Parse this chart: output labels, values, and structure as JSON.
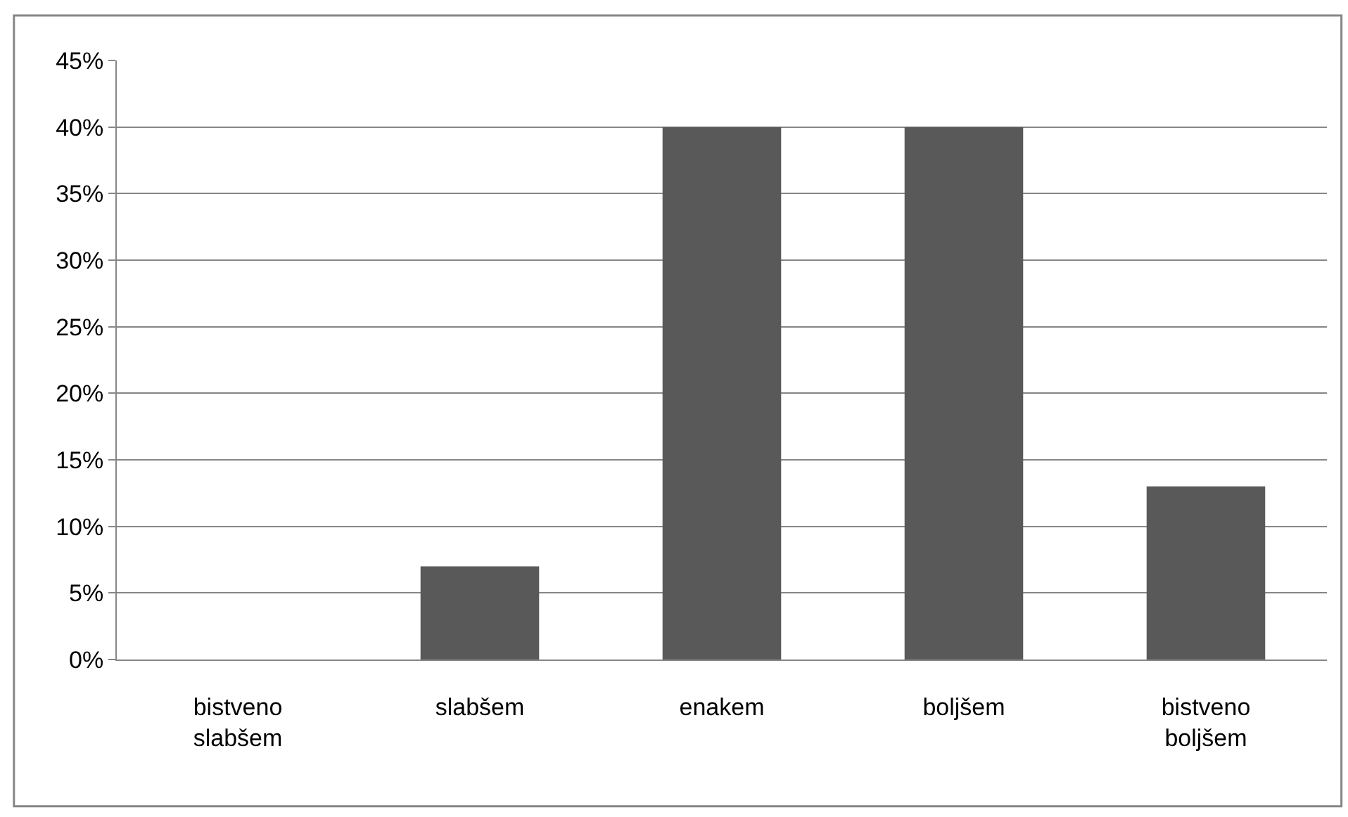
{
  "chart_data": {
    "type": "bar",
    "categories": [
      "bistveno slabšem",
      "slabšem",
      "enakem",
      "boljšem",
      "bistveno boljšem"
    ],
    "values": [
      0,
      7,
      40,
      40,
      13
    ],
    "color": "#595959",
    "ylim": [
      0,
      45
    ],
    "yticks": [
      {
        "value": 0,
        "label": "0%"
      },
      {
        "value": 5,
        "label": "5%"
      },
      {
        "value": 10,
        "label": "10%"
      },
      {
        "value": 15,
        "label": "15%"
      },
      {
        "value": 20,
        "label": "20%"
      },
      {
        "value": 25,
        "label": "25%"
      },
      {
        "value": 30,
        "label": "30%"
      },
      {
        "value": 35,
        "label": "35%"
      },
      {
        "value": 40,
        "label": "40%"
      },
      {
        "value": 45,
        "label": "45%"
      }
    ],
    "grid": "y"
  }
}
